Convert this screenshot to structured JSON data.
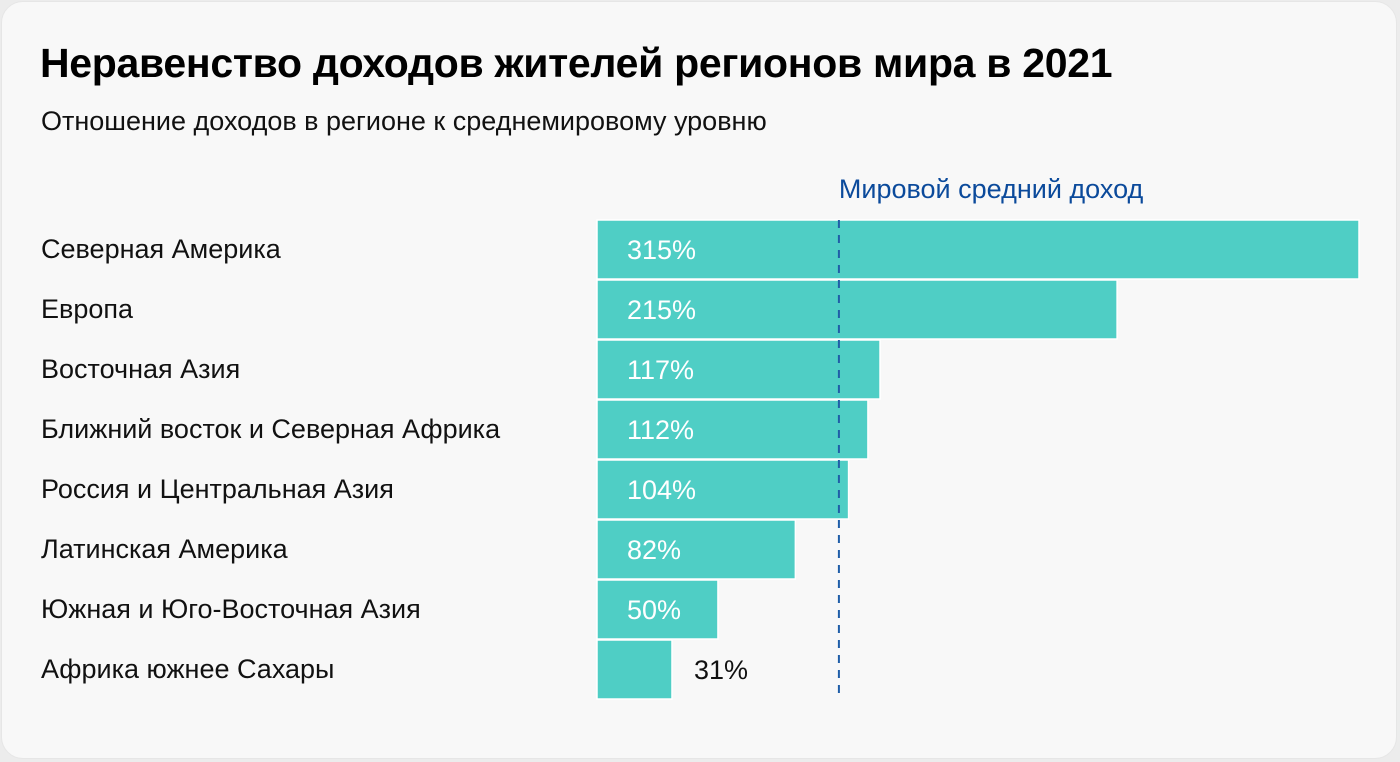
{
  "chart_data": {
    "type": "bar",
    "orientation": "horizontal",
    "title": "Неравенство доходов жителей регионов мира в 2021",
    "subtitle": "Отношение доходов в регионе к среднемировому уровню",
    "categories": [
      "Северная Америка",
      "Европа",
      "Восточная Азия",
      "Ближний восток и Северная Африка",
      "Россия и Центральная Азия",
      "Латинская Америка",
      "Южная и Юго-Восточная Азия",
      "Африка южнее Сахары"
    ],
    "values": [
      315,
      215,
      117,
      112,
      104,
      82,
      50,
      31
    ],
    "value_labels": [
      "315%",
      "215%",
      "117%",
      "112%",
      "104%",
      "82%",
      "50%",
      "31%"
    ],
    "unit": "%",
    "reference_line": {
      "value": 100,
      "label": "Мировой средний доход",
      "style": "dashed"
    },
    "xlim": [
      0,
      315
    ],
    "grid": false,
    "legend": "none",
    "colors": {
      "bar": "#4fcec5",
      "reference": "#1f5ea8",
      "reference_label": "#0b4a9b",
      "label_inside": "#ffffff",
      "label_outside": "#111111"
    }
  }
}
